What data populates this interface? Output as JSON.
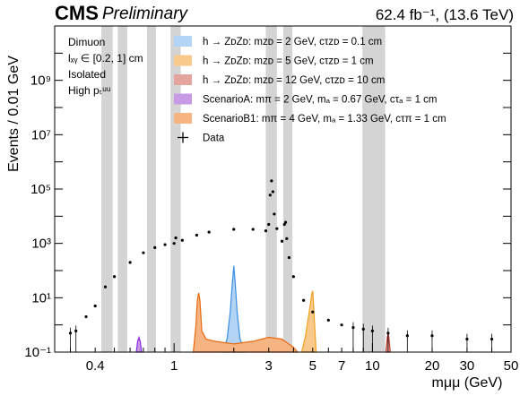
{
  "header": {
    "cms": "CMS",
    "preliminary": "Preliminary",
    "lumi": "62.4 fb⁻¹,  (13.6 TeV)"
  },
  "selection": [
    "Dimuon",
    "lₓᵧ ∈ [0.2, 1] cm",
    "Isolated",
    "High pₜᵘᵘ"
  ],
  "colors": {
    "zd2": "#b3d4f5",
    "zd5": "#f8c98b",
    "zd12": "#e3a59d",
    "scenA": "#c79ae6",
    "scenB1": "#f6b483",
    "veto": "#d4d4d4"
  },
  "chart_data": {
    "type": "line",
    "xlabel": "mμμ (GeV)",
    "ylabel": "Events / 0.01 GeV",
    "xscale": "log",
    "yscale": "log",
    "xlim": [
      0.25,
      50
    ],
    "ylim": [
      0.1,
      100000000000
    ],
    "x_ticks": [
      "0.4",
      "1",
      "3",
      "5",
      "7",
      "10",
      "20",
      "30",
      "50"
    ],
    "x_tick_values": [
      0.4,
      1,
      3,
      5,
      7,
      10,
      20,
      30,
      50
    ],
    "y_ticks": [
      "10⁻¹",
      "10¹",
      "10³",
      "10⁵",
      "10⁷",
      "10⁹"
    ],
    "y_tick_values": [
      0.1,
      10,
      1000,
      100000,
      10000000,
      1000000000
    ],
    "legend": {
      "placement": "top-right",
      "entries": [
        "h → ZᴅZᴅ: mᴢᴅ = 2 GeV, cτᴢᴅ = 0.1 cm",
        "h → ZᴅZᴅ: mᴢᴅ = 5 GeV, cτᴢᴅ = 1 cm",
        "h → ZᴅZᴅ: mᴢᴅ = 12 GeV, cτᴢᴅ = 10 cm",
        "ScenarioA: mπ = 2 GeV, mₐ = 0.67 GeV, cτₐ = 1 cm",
        "ScenarioB1: mπ = 4 GeV, mₐ = 1.33 GeV, cτπ = 1 cm",
        "Data"
      ]
    },
    "vetoed_mass_windows": [
      [
        0.43,
        0.49
      ],
      [
        0.52,
        0.58
      ],
      [
        0.73,
        0.81
      ],
      [
        0.96,
        1.08
      ],
      [
        2.9,
        3.3
      ],
      [
        3.55,
        3.95
      ],
      [
        8.9,
        11.6
      ]
    ],
    "series": [
      {
        "name": "Data",
        "style": "points",
        "x": [
          0.3,
          0.32,
          0.36,
          0.4,
          0.45,
          0.5,
          0.6,
          0.7,
          0.8,
          0.9,
          1.0,
          1.02,
          1.1,
          1.3,
          1.5,
          2.0,
          2.5,
          2.9,
          3.0,
          3.05,
          3.1,
          3.15,
          3.2,
          3.3,
          3.5,
          3.6,
          3.65,
          3.7,
          3.8,
          4.0,
          4.5,
          5.0,
          6.0,
          7.0,
          8.0,
          9.0,
          10.0,
          12.0,
          15.0,
          20.0,
          30.0,
          40.0
        ],
        "y": [
          0.5,
          0.6,
          2,
          5,
          25,
          60,
          200,
          450,
          700,
          900,
          1000,
          1600,
          1300,
          2000,
          2600,
          3300,
          3300,
          2900,
          5000,
          60000,
          200000,
          80000,
          12000,
          3500,
          1200,
          5000,
          6000,
          1500,
          300,
          60,
          8,
          3,
          1.5,
          1,
          0.8,
          0.7,
          0.6,
          0.5,
          0.4,
          0.4,
          0.3,
          0.3
        ]
      },
      {
        "name": "h → ZᴅZᴅ: mᴢᴅ = 2 GeV, cτᴢᴅ = 0.1 cm",
        "style": "filled",
        "x": [
          1.75,
          1.85,
          1.92,
          1.97,
          2.0,
          2.03,
          2.08,
          2.15,
          2.3
        ],
        "y": [
          0.1,
          0.3,
          3,
          40,
          150,
          40,
          3,
          0.3,
          0.1
        ]
      },
      {
        "name": "h → ZᴅZᴅ: mᴢᴅ = 5 GeV, cτᴢᴅ = 1 cm",
        "style": "filled",
        "x": [
          4.4,
          4.6,
          4.8,
          4.95,
          5.0,
          5.05,
          5.2
        ],
        "y": [
          0.1,
          0.4,
          3,
          14,
          18,
          5,
          0.1
        ]
      },
      {
        "name": "h → ZᴅZᴅ: mᴢᴅ = 12 GeV, cτᴢᴅ = 10 cm",
        "style": "filled",
        "x": [
          11.7,
          11.9,
          12.0,
          12.1,
          12.3
        ],
        "y": [
          0.1,
          0.35,
          0.5,
          0.35,
          0.1
        ]
      },
      {
        "name": "ScenarioA: mπ = 2 GeV, mₐ = 0.67 GeV, cτₐ = 1 cm",
        "style": "filled",
        "x": [
          0.645,
          0.655,
          0.665,
          0.675,
          0.685
        ],
        "y": [
          0.1,
          0.25,
          0.35,
          0.25,
          0.1
        ]
      },
      {
        "name": "ScenarioB1: mπ = 4 GeV, mₐ = 1.33 GeV, cτπ = 1 cm",
        "style": "filled",
        "x": [
          1.25,
          1.29,
          1.31,
          1.33,
          1.35,
          1.38,
          1.45,
          1.6,
          2.0,
          2.5,
          3.0,
          3.5,
          4.0,
          4.2
        ],
        "y": [
          0.1,
          1,
          8,
          15,
          8,
          0.6,
          0.3,
          0.25,
          0.2,
          0.25,
          0.35,
          0.3,
          0.15,
          0.1
        ]
      }
    ]
  }
}
